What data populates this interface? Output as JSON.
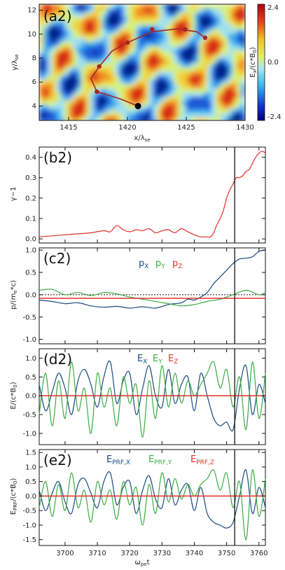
{
  "chart_data": [
    {
      "panel": "(a2)",
      "type": "heatmap",
      "xlabel": "x/λse",
      "ylabel": "y/λse",
      "xlim": [
        1412.5,
        1430
      ],
      "ylim": [
        2.8,
        12.5
      ],
      "xticks": [
        "1415",
        "1420",
        "1425",
        "1430"
      ],
      "yticks": [
        "4",
        "6",
        "8",
        "10",
        "12"
      ],
      "colorbar": {
        "label": "Ex/(c*B0)",
        "range": [
          -2.4,
          2.4
        ],
        "ticks": [
          "2.4",
          "0.0",
          "-2.4"
        ]
      },
      "trajectory": {
        "color": "#a02828",
        "points": [
          [
            1420.9,
            4.0
          ],
          [
            1419.4,
            4.6
          ],
          [
            1417.4,
            5.2
          ],
          [
            1416.9,
            6.3
          ],
          [
            1417.6,
            7.3
          ],
          [
            1418.7,
            8.6
          ],
          [
            1420.0,
            9.3
          ],
          [
            1422.1,
            10.2
          ],
          [
            1424.3,
            10.45
          ],
          [
            1425.9,
            10.2
          ],
          [
            1426.6,
            9.7
          ]
        ],
        "markers": [
          [
            1417.4,
            5.2
          ],
          [
            1417.6,
            7.3
          ],
          [
            1420.0,
            9.3
          ],
          [
            1422.1,
            10.4
          ],
          [
            1424.9,
            10.4
          ],
          [
            1426.6,
            9.7
          ]
        ],
        "end_marker": [
          1420.9,
          4.0
        ]
      }
    },
    {
      "panel": "(b2)",
      "type": "line",
      "ylabel": "γ−1",
      "xlim": [
        3692,
        3762
      ],
      "ylim": [
        -0.02,
        0.45
      ],
      "yticks": [
        "0.0",
        "0.1",
        "0.2",
        "0.3",
        "0.4"
      ],
      "vline": 3752.5,
      "series": [
        {
          "color": "#e0302a",
          "x": [
            3692,
            3696,
            3700,
            3704,
            3708,
            3712,
            3714,
            3716,
            3718,
            3720,
            3722,
            3724,
            3726,
            3728,
            3730,
            3732,
            3734,
            3736,
            3738,
            3740,
            3742,
            3744,
            3745,
            3746,
            3747,
            3748,
            3749,
            3750,
            3751,
            3752,
            3753,
            3754,
            3755,
            3756,
            3757,
            3758,
            3759,
            3760,
            3761,
            3762
          ],
          "values": [
            0.01,
            0.015,
            0.02,
            0.025,
            0.03,
            0.04,
            0.035,
            0.065,
            0.045,
            0.035,
            0.045,
            0.04,
            0.05,
            0.03,
            0.04,
            0.045,
            0.03,
            0.05,
            0.035,
            0.02,
            0.01,
            0.01,
            0.01,
            0.03,
            0.07,
            0.1,
            0.14,
            0.2,
            0.24,
            0.27,
            0.3,
            0.3,
            0.31,
            0.33,
            0.34,
            0.37,
            0.4,
            0.42,
            0.43,
            0.42
          ]
        }
      ]
    },
    {
      "panel": "(c2)",
      "type": "line",
      "ylabel": "p/(me*c)",
      "xlim": [
        3692,
        3762
      ],
      "ylim": [
        -1.1,
        1.05
      ],
      "yticks": [
        "-1.0",
        "-0.5",
        "0.0",
        "0.5",
        "1.0"
      ],
      "vline": 3752.5,
      "legend": [
        "px",
        "pY",
        "pZ"
      ],
      "series": [
        {
          "name": "px",
          "color": "#1a4a82",
          "x": [
            3692,
            3696,
            3700,
            3704,
            3708,
            3712,
            3716,
            3720,
            3724,
            3728,
            3732,
            3736,
            3738,
            3740,
            3742,
            3744,
            3746,
            3748,
            3750,
            3752,
            3754,
            3756,
            3758,
            3760,
            3762
          ],
          "values": [
            -0.12,
            -0.15,
            -0.2,
            -0.18,
            -0.25,
            -0.28,
            -0.26,
            -0.3,
            -0.27,
            -0.3,
            -0.22,
            -0.18,
            -0.1,
            -0.12,
            -0.05,
            0.05,
            0.25,
            0.4,
            0.55,
            0.7,
            0.8,
            0.82,
            0.85,
            0.97,
            1.0
          ]
        },
        {
          "name": "pY",
          "color": "#3cac44",
          "x": [
            3692,
            3696,
            3700,
            3704,
            3708,
            3712,
            3716,
            3720,
            3724,
            3728,
            3732,
            3736,
            3740,
            3744,
            3748,
            3752,
            3756,
            3760,
            3762
          ],
          "values": [
            0.1,
            0.12,
            0.0,
            0.05,
            -0.02,
            0.05,
            0.02,
            -0.05,
            -0.1,
            -0.15,
            -0.2,
            -0.25,
            -0.22,
            -0.15,
            -0.1,
            0.0,
            0.1,
            0.0,
            0.05
          ]
        },
        {
          "name": "pZ",
          "color": "#e0302a",
          "x": [
            3692,
            3762
          ],
          "values": [
            -0.08,
            -0.08
          ]
        }
      ]
    },
    {
      "panel": "(d2)",
      "type": "line",
      "ylabel": "E/(c*B0)",
      "xlim": [
        3692,
        3762
      ],
      "ylim": [
        -1.3,
        1.25
      ],
      "yticks": [
        "-1.0",
        "-0.5",
        "0.0",
        "0.5",
        "1.0"
      ],
      "vline": 3752.5,
      "legend": [
        "Ex",
        "EY",
        "EZ"
      ],
      "series": [
        {
          "name": "Ex",
          "color": "#1a4a82",
          "x": [
            3692,
            3694,
            3696,
            3698,
            3700,
            3702,
            3704,
            3706,
            3708,
            3710,
            3712,
            3714,
            3716,
            3718,
            3720,
            3722,
            3724,
            3726,
            3728,
            3730,
            3732,
            3734,
            3736,
            3738,
            3740,
            3742,
            3744,
            3746,
            3748,
            3750,
            3752,
            3754,
            3756,
            3758,
            3760,
            3762
          ],
          "values": [
            0.3,
            -0.4,
            0.1,
            0.6,
            0.2,
            -0.5,
            0.4,
            0.7,
            0.3,
            -0.3,
            0.5,
            0.9,
            -0.2,
            0.4,
            0.6,
            -0.5,
            0.2,
            0.8,
            0.0,
            -0.3,
            0.7,
            -0.2,
            0.3,
            0.5,
            -0.4,
            0.6,
            0.0,
            -0.6,
            -0.8,
            -0.7,
            -0.9,
            0.2,
            0.8,
            -0.5,
            0.3,
            -0.2
          ]
        },
        {
          "name": "EY",
          "color": "#3cac44",
          "x": [
            3692,
            3694,
            3696,
            3698,
            3700,
            3702,
            3704,
            3706,
            3708,
            3710,
            3712,
            3714,
            3716,
            3718,
            3720,
            3722,
            3724,
            3726,
            3728,
            3730,
            3732,
            3734,
            3736,
            3738,
            3740,
            3742,
            3744,
            3746,
            3748,
            3750,
            3752,
            3754,
            3756,
            3758,
            3760,
            3762
          ],
          "values": [
            -0.5,
            0.6,
            -0.8,
            0.4,
            -0.6,
            0.9,
            -0.4,
            0.2,
            -1.0,
            0.6,
            -0.3,
            0.2,
            -0.8,
            0.5,
            -0.2,
            0.3,
            -1.1,
            0.4,
            -0.6,
            0.8,
            -0.3,
            0.6,
            -0.2,
            0.4,
            0.0,
            0.3,
            0.6,
            0.9,
            0.2,
            0.7,
            -0.3,
            0.5,
            -0.9,
            0.9,
            -0.6,
            0.6
          ]
        },
        {
          "name": "EZ",
          "color": "#e0302a",
          "x": [
            3692,
            3762
          ],
          "values": [
            0.0,
            0.0
          ]
        }
      ]
    },
    {
      "panel": "(e2)",
      "type": "line",
      "xlabel": "ωpet",
      "ylabel": "EPRF/(c*B0)",
      "xlim": [
        3692,
        3762
      ],
      "ylim": [
        -1.7,
        1.6
      ],
      "yticks": [
        "-1.5",
        "-1.0",
        "-0.5",
        "0.0",
        "0.5",
        "1.0",
        "1.5"
      ],
      "xticks": [
        "3700",
        "3710",
        "3720",
        "3730",
        "3740",
        "3750",
        "3760"
      ],
      "vline": 3752.5,
      "legend": [
        "EPRF,x",
        "EPRF,Y",
        "EPRF,Z"
      ],
      "series": [
        {
          "name": "EPRF,x",
          "color": "#1a4a82",
          "x": [
            3692,
            3694,
            3696,
            3698,
            3700,
            3702,
            3704,
            3706,
            3708,
            3710,
            3712,
            3714,
            3716,
            3718,
            3720,
            3722,
            3724,
            3726,
            3728,
            3730,
            3732,
            3734,
            3736,
            3738,
            3740,
            3742,
            3744,
            3746,
            3748,
            3750,
            3752,
            3754,
            3756,
            3758,
            3760,
            3762
          ],
          "values": [
            0.2,
            -0.5,
            0.1,
            0.5,
            -0.2,
            -0.6,
            0.4,
            0.6,
            0.1,
            -0.4,
            0.5,
            0.8,
            -0.3,
            0.3,
            0.5,
            -0.6,
            0.2,
            0.7,
            -0.1,
            -0.4,
            0.6,
            -0.3,
            0.2,
            0.4,
            -0.5,
            0.3,
            -0.6,
            -0.9,
            -1.0,
            -1.1,
            -0.9,
            0.0,
            0.9,
            -0.6,
            0.3,
            -0.4
          ]
        },
        {
          "name": "EPRF,Y",
          "color": "#3cac44",
          "x": [
            3692,
            3694,
            3696,
            3698,
            3700,
            3702,
            3704,
            3706,
            3708,
            3710,
            3712,
            3714,
            3716,
            3718,
            3720,
            3722,
            3724,
            3726,
            3728,
            3730,
            3732,
            3734,
            3736,
            3738,
            3740,
            3742,
            3744,
            3746,
            3748,
            3750,
            3752,
            3754,
            3756,
            3758,
            3760,
            3762
          ],
          "values": [
            -0.4,
            0.5,
            -0.7,
            0.4,
            -0.5,
            0.8,
            -0.4,
            0.2,
            -0.9,
            0.5,
            -0.3,
            0.2,
            -0.8,
            0.5,
            -0.3,
            0.3,
            -1.0,
            0.4,
            -0.6,
            0.8,
            -0.2,
            0.6,
            -0.1,
            0.4,
            0.0,
            0.4,
            0.6,
            0.9,
            0.2,
            0.8,
            -0.4,
            0.5,
            -1.5,
            0.9,
            -0.7,
            0.6
          ]
        },
        {
          "name": "EPRF,Z",
          "color": "#e0302a",
          "x": [
            3692,
            3762
          ],
          "values": [
            0.0,
            0.0
          ]
        }
      ]
    }
  ]
}
